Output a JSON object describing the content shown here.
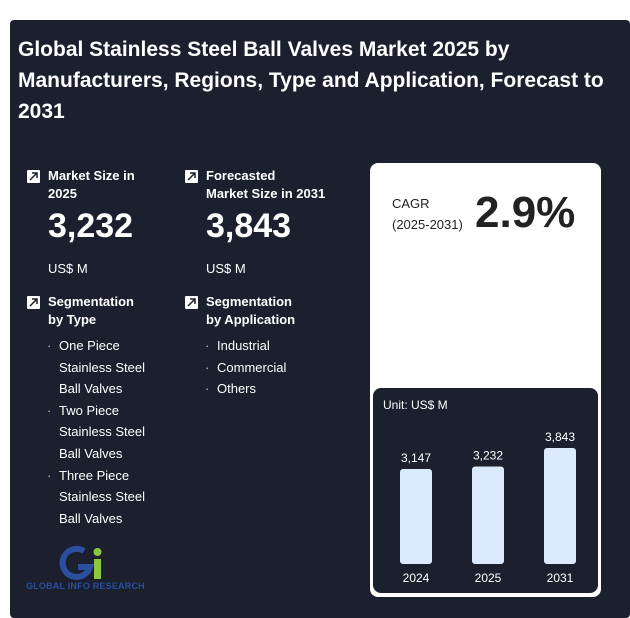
{
  "title": "Global Stainless Steel Ball Valves Market 2025 by Manufacturers, Regions, Type and Application, Forecast to 2031",
  "market_size": {
    "label_line1": "Market Size in",
    "label_line2": "2025",
    "value": "3,232",
    "unit": "US$ M"
  },
  "forecast_size": {
    "label_line1": "Forecasted",
    "label_line2": "Market Size in 2031",
    "value": "3,843",
    "unit": "US$ M"
  },
  "segmentation_type": {
    "label_line1": "Segmentation",
    "label_line2": "by Type",
    "items": [
      [
        "One Piece",
        "Stainless Steel",
        "Ball Valves"
      ],
      [
        "Two Piece",
        "Stainless Steel",
        "Ball Valves"
      ],
      [
        "Three Piece",
        "Stainless Steel",
        "Ball Valves"
      ]
    ]
  },
  "segmentation_application": {
    "label_line1": "Segmentation",
    "label_line2": "by Application",
    "items": [
      "Industrial",
      "Commercial",
      "Others"
    ]
  },
  "cagr": {
    "label_line1": "CAGR",
    "label_line2": "(2025-2031)",
    "value": "2.9%"
  },
  "logo_text": "GLOBAL INFO RESEARCH",
  "colors": {
    "background": "#1b1f2e",
    "bar_fill": "#dbeafe",
    "logo_blue": "#2a4f9e",
    "logo_green": "#8cc63f"
  },
  "chart_data": {
    "type": "bar",
    "unit_label": "Unit: US$ M",
    "categories": [
      "2024",
      "2025",
      "2031"
    ],
    "values": [
      3147,
      3232,
      3843
    ],
    "value_labels": [
      "3,147",
      "3,232",
      "3,843"
    ],
    "ylim": [
      0,
      4500
    ],
    "grid": false,
    "legend": "none"
  }
}
